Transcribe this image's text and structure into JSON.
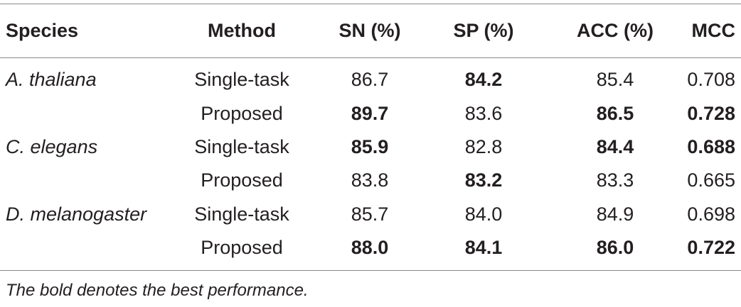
{
  "table": {
    "headers": {
      "species": "Species",
      "method": "Method",
      "sn": "SN (%)",
      "sp": "SP (%)",
      "acc": "ACC (%)",
      "mcc": "MCC"
    },
    "rows": [
      {
        "species": "A. thaliana",
        "method": "Single-task",
        "sn": "86.7",
        "sp": "84.2",
        "acc": "85.4",
        "mcc": "0.708"
      },
      {
        "species": "",
        "method": "Proposed",
        "sn": "89.7",
        "sp": "83.6",
        "acc": "86.5",
        "mcc": "0.728"
      },
      {
        "species": "C. elegans",
        "method": "Single-task",
        "sn": "85.9",
        "sp": "82.8",
        "acc": "84.4",
        "mcc": "0.688"
      },
      {
        "species": "",
        "method": "Proposed",
        "sn": "83.8",
        "sp": "83.2",
        "acc": "83.3",
        "mcc": "0.665"
      },
      {
        "species": "D. melanogaster",
        "method": "Single-task",
        "sn": "85.7",
        "sp": "84.0",
        "acc": "84.9",
        "mcc": "0.698"
      },
      {
        "species": "",
        "method": "Proposed",
        "sn": "88.0",
        "sp": "84.1",
        "acc": "86.0",
        "mcc": "0.722"
      }
    ],
    "footnote": "The bold denotes the best performance."
  }
}
